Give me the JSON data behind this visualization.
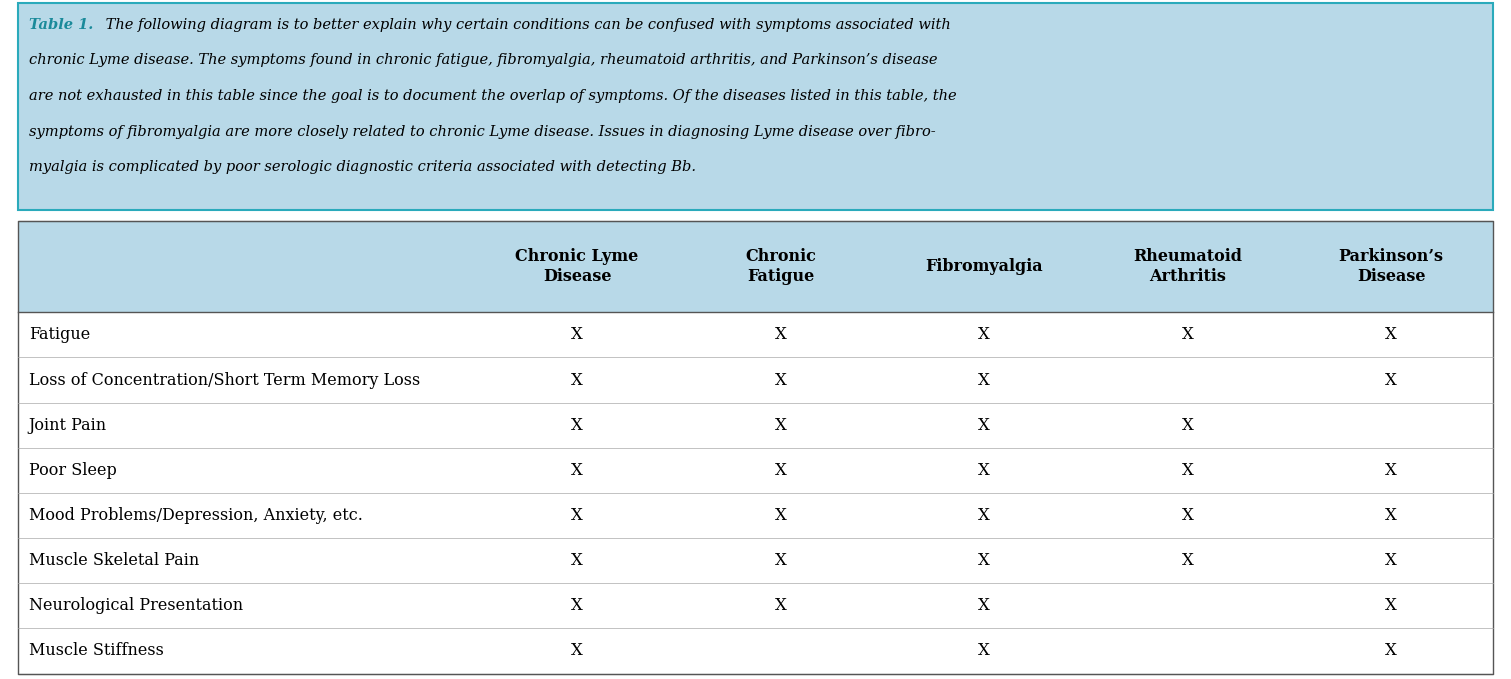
{
  "caption_bold": "Table 1.",
  "caption_text": " The following diagram is to better explain why certain conditions can be confused with symptoms associated with chronic Lyme disease. The symptoms found in chronic fatigue, fibromyalgia, rheumatoid arthritis, and Parkinson’s disease are not exhausted in this table since the goal is to document the overlap of symptoms. Of the diseases listed in this table, the symptoms of fibromyalgia are more closely related to chronic Lyme disease. Issues in diagnosing Lyme disease over fibromyalgia is complicated by poor serologic diagnostic criteria associated with detecting Bb.",
  "header_bg": "#b8d9e8",
  "caption_bg": "#b8d9e8",
  "caption_title_color": "#1a8a9a",
  "columns": [
    "Chronic Lyme\nDisease",
    "Chronic\nFatigue",
    "Fibromyalgia",
    "Rheumatoid\nArthritis",
    "Parkinson’s\nDisease"
  ],
  "rows": [
    {
      "symptom": "Fatigue",
      "marks": [
        1,
        1,
        1,
        1,
        1
      ]
    },
    {
      "symptom": "Loss of Concentration/Short Term Memory Loss",
      "marks": [
        1,
        1,
        1,
        0,
        1
      ]
    },
    {
      "symptom": "Joint Pain",
      "marks": [
        1,
        1,
        1,
        1,
        0
      ]
    },
    {
      "symptom": "Poor Sleep",
      "marks": [
        1,
        1,
        1,
        1,
        1
      ]
    },
    {
      "symptom": "Mood Problems/Depression, Anxiety, etc.",
      "marks": [
        1,
        1,
        1,
        1,
        1
      ]
    },
    {
      "symptom": "Muscle Skeletal Pain",
      "marks": [
        1,
        1,
        1,
        1,
        1
      ]
    },
    {
      "symptom": "Neurological Presentation",
      "marks": [
        1,
        1,
        1,
        0,
        1
      ]
    },
    {
      "symptom": "Muscle Stiffness",
      "marks": [
        1,
        0,
        1,
        0,
        1
      ]
    }
  ],
  "figsize": [
    15.11,
    6.79
  ],
  "dpi": 100,
  "caption_lines": [
    "Table 1. The following diagram is to better explain why certain conditions can be confused with symptoms associated with",
    "chronic Lyme disease. The symptoms found in chronic fatigue, fibromyalgia, rheumatoid arthritis, and Parkinson’s disease",
    "are not exhausted in this table since the goal is to document the overlap of symptoms. Of the diseases listed in this table, the",
    "symptoms of fibromyalgia are more closely related to chronic Lyme disease. Issues in diagnosing Lyme disease over fibro-",
    "myalgia is complicated by poor serologic diagnostic criteria associated with detecting Bb."
  ]
}
